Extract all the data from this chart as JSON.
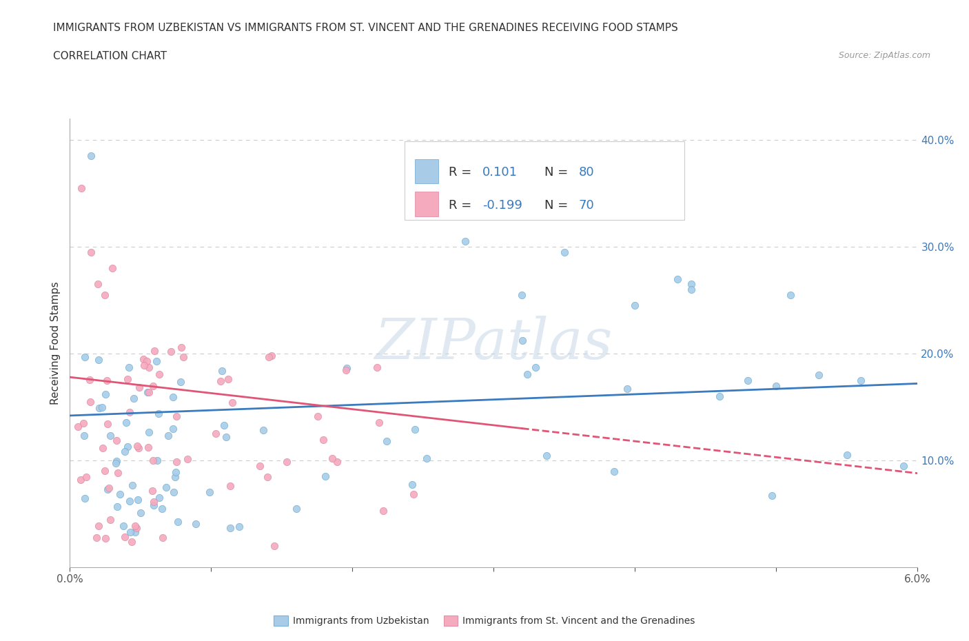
{
  "title_line1": "IMMIGRANTS FROM UZBEKISTAN VS IMMIGRANTS FROM ST. VINCENT AND THE GRENADINES RECEIVING FOOD STAMPS",
  "title_line2": "CORRELATION CHART",
  "source_text": "Source: ZipAtlas.com",
  "ylabel": "Receiving Food Stamps",
  "x_min": 0.0,
  "x_max": 0.06,
  "y_min": 0.0,
  "y_max": 0.42,
  "color_uzbekistan": "#a8cce8",
  "color_stvincent": "#f5aabe",
  "trendline_uzbekistan_color": "#3a7abf",
  "trendline_stvincent_color": "#e05575",
  "R_uzbekistan": 0.101,
  "N_uzbekistan": 80,
  "R_stvincent": -0.199,
  "N_stvincent": 70,
  "legend_label_uzbekistan": "Immigrants from Uzbekistan",
  "legend_label_stvincent": "Immigrants from St. Vincent and the Grenadines",
  "watermark": "ZIPatlas",
  "background_color": "#ffffff",
  "grid_color": "#cccccc",
  "uzb_trend_y0": 0.142,
  "uzb_trend_y1": 0.172,
  "stv_trend_y0": 0.178,
  "stv_trend_y1": 0.088
}
